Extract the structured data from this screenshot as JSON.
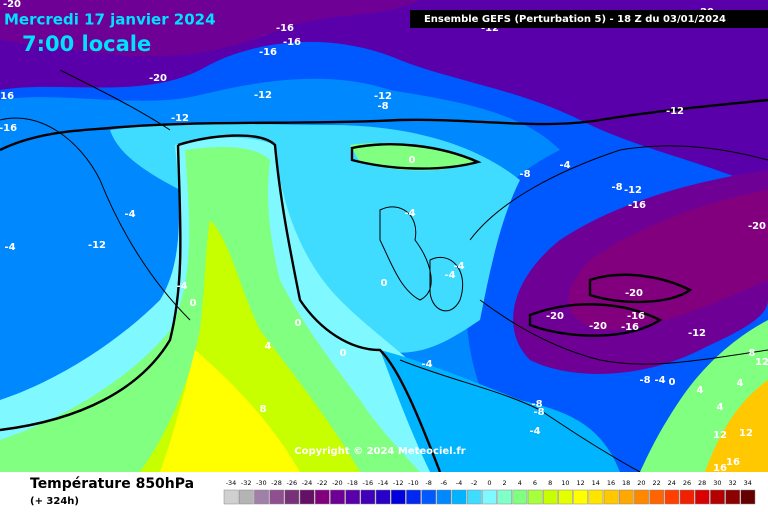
{
  "header": {
    "date": "Mercredi 17 janvier 2024",
    "time": "7:00 locale",
    "model": "Ensemble GEFS  (Perturbation 5)  -  18 Z du 03/01/2024"
  },
  "copyright": "Copyright © 2024 Meteociel.fr",
  "footer": {
    "title": "Température 850hPa",
    "subtitle": "(+ 324h)"
  },
  "legend": {
    "ticks": [
      -34,
      -32,
      -30,
      -28,
      -26,
      -24,
      -22,
      -20,
      -18,
      -16,
      -14,
      -12,
      -10,
      -8,
      -6,
      -4,
      -2,
      0,
      2,
      4,
      6,
      8,
      10,
      12,
      14,
      16,
      18,
      20,
      22,
      24,
      26,
      28,
      30,
      32,
      34
    ],
    "colors": [
      "#d0d0d0",
      "#b4b4b4",
      "#a080a8",
      "#905090",
      "#783078",
      "#641064",
      "#82007e",
      "#6e0096",
      "#5a00aa",
      "#4000b8",
      "#2800c8",
      "#0000dc",
      "#0028f0",
      "#0058ff",
      "#0088ff",
      "#00b4ff",
      "#40dcff",
      "#80f8ff",
      "#80ffc8",
      "#80ff80",
      "#a8ff40",
      "#c8ff00",
      "#e4ff00",
      "#ffff00",
      "#ffe400",
      "#ffc800",
      "#ffa800",
      "#ff8800",
      "#ff6400",
      "#ff4000",
      "#f02000",
      "#d80000",
      "#b40000",
      "#8c0000",
      "#640000"
    ]
  },
  "contour_labels": [
    "-20",
    "-16",
    "-16",
    "-16",
    "-20",
    "-16",
    "-12",
    "-12",
    "-8",
    "-16",
    "-12",
    "-12",
    "0",
    "-4",
    "-8",
    "-8",
    "-12",
    "-16",
    "-4",
    "-4",
    "-12",
    "-20",
    "-4",
    "-4",
    "-4",
    "0",
    "-4",
    "0",
    "-20",
    "0",
    "-20",
    "-16",
    "-20",
    "-16",
    "-12",
    "4",
    "0",
    "-4",
    "8",
    "12",
    "-8",
    "-4",
    "0",
    "4",
    "4",
    "8",
    "-8",
    "-8",
    "4",
    "-4",
    "12",
    "12",
    "16",
    "16",
    "-12",
    "-20"
  ]
}
